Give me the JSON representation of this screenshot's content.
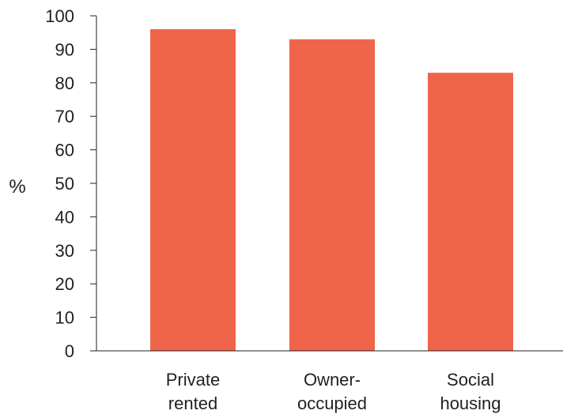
{
  "chart_data": {
    "type": "bar",
    "title": "",
    "xlabel": "",
    "ylabel": "%",
    "categories": [
      [
        "Private",
        "rented"
      ],
      [
        "Owner-",
        "occupied"
      ],
      [
        "Social",
        "housing"
      ]
    ],
    "values": [
      96,
      93,
      83
    ],
    "ylim": [
      0,
      100
    ],
    "yticks": [
      "0",
      "10",
      "20",
      "30",
      "40",
      "50",
      "60",
      "70",
      "80",
      "90",
      "100"
    ],
    "grid": false,
    "bar_color": "#f0654a",
    "axis_color": "#231f20"
  }
}
